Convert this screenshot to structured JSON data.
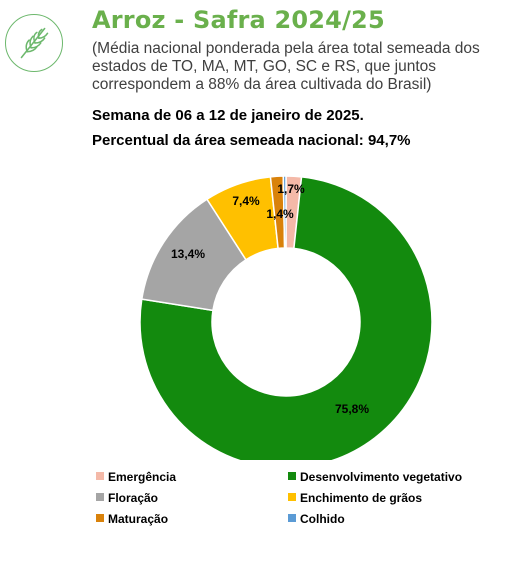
{
  "header": {
    "title": "Arroz - Safra 2024/25",
    "subtitle": "(Média nacional ponderada pela área total semeada dos estados de TO, MA, MT, GO, SC e RS, que juntos correspondem a 88% da área cultivada do Brasil)",
    "week": "Semana de 06 a 12 de janeiro de 2025.",
    "national_area": "Percentual da área semeada nacional: 94,7%",
    "logo_icon": "rice-plant-icon"
  },
  "chart_data": {
    "type": "pie",
    "donut": true,
    "legend_position": "bottom",
    "series": [
      {
        "name": "Emergência",
        "value": 1.7,
        "label": "1,7%",
        "color": "#f4b9a8"
      },
      {
        "name": "Desenvolvimento vegetativo",
        "value": 75.8,
        "label": "75,8%",
        "color": "#138a0e"
      },
      {
        "name": "Floração",
        "value": 13.4,
        "label": "13,4%",
        "color": "#a5a5a5"
      },
      {
        "name": "Enchimento de grãos",
        "value": 7.4,
        "label": "7,4%",
        "color": "#ffc000"
      },
      {
        "name": "Maturação",
        "value": 1.4,
        "label": "1,4%",
        "color": "#d9820b"
      },
      {
        "name": "Colhido",
        "value": 0.3,
        "label": "",
        "color": "#5b9bd5"
      }
    ]
  }
}
